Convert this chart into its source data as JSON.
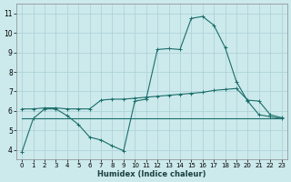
{
  "xlabel": "Humidex (Indice chaleur)",
  "bg_color": "#cce9ec",
  "grid_color": "#aad0d4",
  "line_color": "#1a6e6a",
  "xlim": [
    -0.5,
    23.5
  ],
  "ylim": [
    3.5,
    11.5
  ],
  "xticks": [
    0,
    1,
    2,
    3,
    4,
    5,
    6,
    7,
    8,
    9,
    10,
    11,
    12,
    13,
    14,
    15,
    16,
    17,
    18,
    19,
    20,
    21,
    22,
    23
  ],
  "yticks": [
    4,
    5,
    6,
    7,
    8,
    9,
    10,
    11
  ],
  "curve1_x": [
    0,
    1,
    2,
    3,
    4,
    5,
    6,
    7,
    8,
    9,
    10,
    11,
    12,
    13,
    14,
    15,
    16,
    17,
    18,
    19,
    20,
    21,
    22,
    23
  ],
  "curve1_y": [
    3.9,
    5.6,
    6.1,
    6.1,
    5.75,
    5.3,
    4.65,
    4.5,
    4.2,
    3.95,
    6.5,
    6.6,
    9.15,
    9.2,
    9.15,
    10.75,
    10.85,
    10.4,
    9.25,
    7.5,
    6.5,
    5.8,
    5.7,
    5.6
  ],
  "curve2_x": [
    0,
    1,
    2,
    3,
    4,
    5,
    6,
    7,
    8,
    9,
    10,
    11,
    12,
    13,
    14,
    15,
    16,
    17,
    18,
    19,
    20,
    21,
    22,
    23
  ],
  "curve2_y": [
    6.1,
    6.1,
    6.15,
    6.15,
    6.1,
    6.1,
    6.1,
    6.55,
    6.6,
    6.6,
    6.65,
    6.7,
    6.75,
    6.8,
    6.85,
    6.9,
    6.95,
    7.05,
    7.1,
    7.15,
    6.55,
    6.5,
    5.8,
    5.65
  ],
  "curve3_x": [
    0,
    1,
    2,
    3,
    4,
    5,
    6,
    7,
    8,
    9,
    10,
    11,
    12,
    13,
    14,
    15,
    16,
    17,
    18,
    19,
    20,
    21,
    22,
    23
  ],
  "curve3_y": [
    5.6,
    5.6,
    5.6,
    5.6,
    5.6,
    5.6,
    5.6,
    5.6,
    5.6,
    5.6,
    5.6,
    5.6,
    5.6,
    5.6,
    5.6,
    5.6,
    5.6,
    5.6,
    5.6,
    5.6,
    5.6,
    5.6,
    5.6,
    5.6
  ]
}
